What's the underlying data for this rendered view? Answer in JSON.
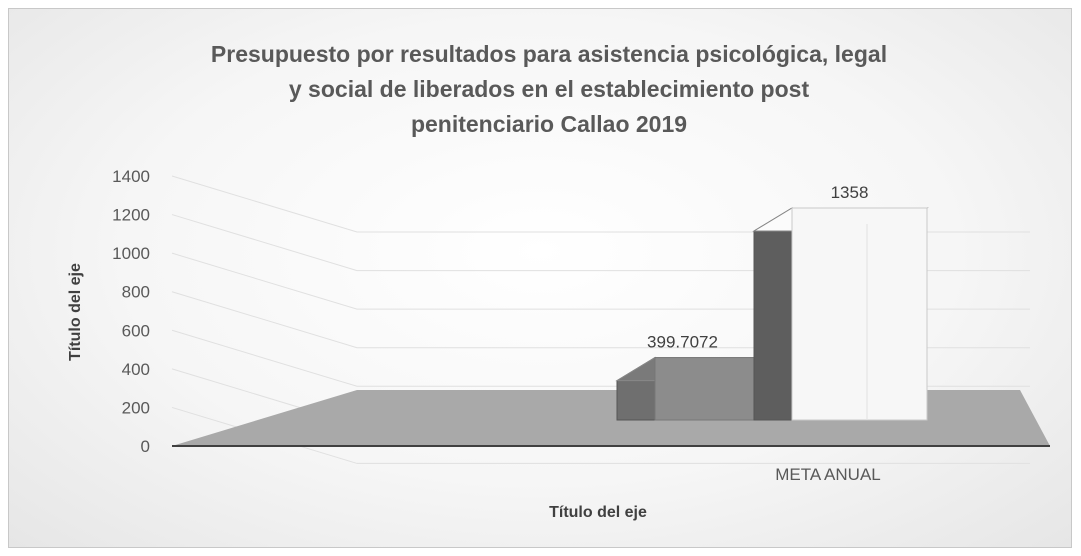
{
  "chart_data": {
    "type": "bar",
    "title": "Presupuesto por resultados para asistencia psicológica, legal\ny social de liberados en el establecimiento post\npenitenciario Callao 2019",
    "categories": [
      "META ANUAL"
    ],
    "series": [
      {
        "values": [
          399.7072
        ],
        "color": "#8c8c8c"
      },
      {
        "values": [
          1358
        ],
        "color": "#f7f7f7"
      }
    ],
    "data_labels": [
      "399.7072",
      "1358"
    ],
    "ylim": [
      0,
      1400
    ],
    "yticks": [
      0,
      200,
      400,
      600,
      800,
      1000,
      1200,
      1400
    ],
    "xlabel": "Título del eje",
    "ylabel": "Título del eje",
    "grid": true,
    "legend": "none",
    "style": "3d"
  }
}
